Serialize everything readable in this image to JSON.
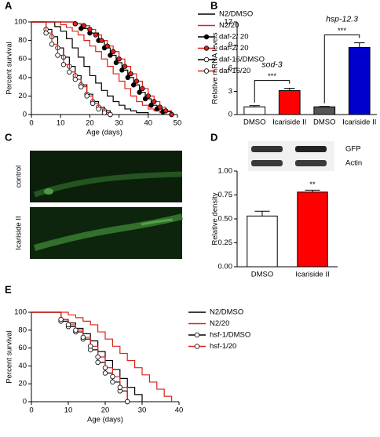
{
  "chart_data": [
    {
      "type": "survival",
      "panel": "A",
      "ylabel": "Percent survival",
      "xlabel": "Age (days)",
      "xlim": [
        0,
        50
      ],
      "xticks": [
        0,
        10,
        20,
        30,
        40,
        50
      ],
      "ylim": [
        0,
        100
      ],
      "yticks": [
        0,
        20,
        40,
        60,
        80,
        100
      ],
      "series": [
        {
          "name": "N2/DMSO",
          "color": "#000000",
          "x": [
            0,
            8,
            10,
            12,
            14,
            16,
            18,
            20,
            22,
            24,
            26,
            28,
            30,
            32,
            34,
            36,
            40
          ],
          "values": [
            100,
            95,
            90,
            82,
            72,
            62,
            52,
            42,
            34,
            26,
            20,
            14,
            10,
            6,
            4,
            2,
            0
          ]
        },
        {
          "name": "N2/20",
          "color": "#e0201a",
          "x": [
            0,
            10,
            12,
            14,
            16,
            18,
            20,
            22,
            24,
            26,
            28,
            30,
            32,
            34,
            36,
            38,
            40,
            42,
            44,
            46
          ],
          "values": [
            100,
            97,
            94,
            90,
            86,
            80,
            74,
            68,
            60,
            52,
            44,
            36,
            28,
            20,
            14,
            10,
            6,
            4,
            2,
            0
          ]
        },
        {
          "name": "daf-2/ 20",
          "color": "#000000",
          "marker": "filled",
          "x": [
            0,
            15,
            17,
            20,
            23,
            25,
            27,
            29,
            31,
            33,
            35,
            37,
            39,
            41,
            43,
            45,
            48
          ],
          "values": [
            100,
            98,
            93,
            88,
            80,
            72,
            64,
            56,
            48,
            40,
            32,
            24,
            17,
            10,
            6,
            3,
            0
          ]
        },
        {
          "name": "daf-2/ 20",
          "color": "#e0201a",
          "marker": "filled",
          "x": [
            0,
            15,
            18,
            20,
            22,
            24,
            26,
            28,
            30,
            32,
            34,
            36,
            38,
            40,
            42,
            44,
            46,
            48
          ],
          "values": [
            100,
            98,
            96,
            92,
            86,
            80,
            74,
            68,
            60,
            52,
            44,
            36,
            28,
            20,
            14,
            8,
            4,
            0
          ]
        },
        {
          "name": "daf-16/DMSO",
          "color": "#000000",
          "marker": "open",
          "x": [
            0,
            5,
            7,
            9,
            11,
            13,
            15,
            17,
            19,
            21,
            23,
            25,
            27
          ],
          "values": [
            100,
            92,
            84,
            72,
            62,
            52,
            42,
            32,
            22,
            14,
            8,
            4,
            0
          ]
        },
        {
          "name": "daf-16/20",
          "color": "#e0201a",
          "marker": "open",
          "x": [
            0,
            5,
            7,
            9,
            11,
            13,
            15,
            17,
            19,
            21,
            23,
            25,
            27
          ],
          "values": [
            100,
            88,
            76,
            64,
            54,
            46,
            38,
            30,
            20,
            12,
            6,
            2,
            0
          ]
        }
      ]
    },
    {
      "type": "bar",
      "panel": "B",
      "ylabel": "Relative mRNA levels",
      "categories": [
        "DMSO",
        "Icariside II",
        "DMSO",
        "Icariside II"
      ],
      "values": [
        1.0,
        3.1,
        1.0,
        8.7
      ],
      "errors": [
        0.15,
        0.3,
        0.05,
        0.6
      ],
      "colors": [
        "#ffffff",
        "#ff0000",
        "#555555",
        "#0000cc"
      ],
      "ylim": [
        0,
        12
      ],
      "yticks": [
        0,
        3,
        6,
        9,
        12
      ],
      "annotations": [
        "sod-3",
        "***",
        "hsp-12.3",
        "***"
      ]
    },
    {
      "type": "bar",
      "panel": "D",
      "ylabel": "Relative density",
      "blot_labels": [
        "GFP",
        "Actin"
      ],
      "categories": [
        "DMSO",
        "Icariside II"
      ],
      "values": [
        0.53,
        0.78
      ],
      "errors": [
        0.05,
        0.02
      ],
      "colors": [
        "#ffffff",
        "#ff0000"
      ],
      "ylim": [
        0,
        1
      ],
      "yticks": [
        {
          "value": 0,
          "label": "0.00"
        },
        {
          "value": 0.25,
          "label": "0.25"
        },
        {
          "value": 0.5,
          "label": "0.50"
        },
        {
          "value": 0.75,
          "label": "0.75"
        },
        {
          "value": 1,
          "label": "1.00"
        }
      ],
      "annotations": [
        "**"
      ]
    },
    {
      "type": "survival",
      "panel": "E",
      "ylabel": "Percent survival",
      "xlabel": "Age (days)",
      "xlim": [
        0,
        40
      ],
      "xticks": [
        0,
        10,
        20,
        30,
        40
      ],
      "ylim": [
        0,
        100
      ],
      "yticks": [
        0,
        20,
        40,
        60,
        80,
        100
      ],
      "series": [
        {
          "name": "N2/DMSO",
          "color": "#000000",
          "x": [
            0,
            8,
            10,
            12,
            14,
            16,
            18,
            20,
            22,
            24,
            26,
            28,
            30
          ],
          "values": [
            100,
            92,
            88,
            82,
            76,
            68,
            56,
            46,
            36,
            26,
            16,
            8,
            0
          ]
        },
        {
          "name": "N2/20",
          "color": "#e0201a",
          "x": [
            0,
            10,
            12,
            14,
            16,
            18,
            20,
            22,
            24,
            26,
            28,
            30,
            32,
            34,
            36,
            38
          ],
          "values": [
            100,
            97,
            94,
            90,
            86,
            78,
            70,
            62,
            54,
            46,
            38,
            30,
            22,
            14,
            6,
            0
          ]
        },
        {
          "name": "hsf-1/DMSO",
          "color": "#000000",
          "marker": "open",
          "x": [
            0,
            8,
            10,
            12,
            14,
            16,
            18,
            20,
            22,
            24,
            26
          ],
          "values": [
            100,
            90,
            84,
            78,
            70,
            58,
            44,
            32,
            22,
            12,
            0
          ]
        },
        {
          "name": "hsf-1/20",
          "color": "#e0201a",
          "marker": "open",
          "x": [
            0,
            8,
            10,
            12,
            14,
            16,
            18,
            20,
            22,
            24,
            26
          ],
          "values": [
            100,
            92,
            86,
            80,
            72,
            62,
            50,
            38,
            28,
            16,
            0
          ]
        }
      ]
    }
  ],
  "images": {
    "panel": "C",
    "captions": [
      "control",
      "Icariside II"
    ]
  }
}
